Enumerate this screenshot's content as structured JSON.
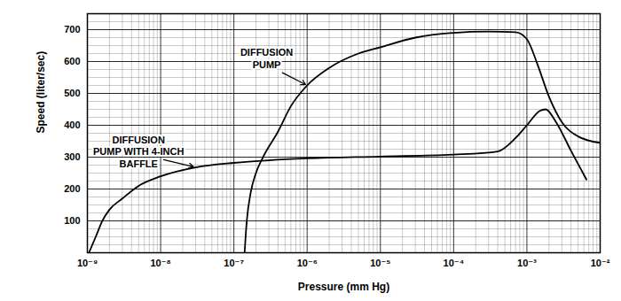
{
  "chart_data": {
    "type": "line",
    "xlabel": "Pressure (mm Hg)",
    "ylabel": "Speed (liter/sec)",
    "log": "x",
    "grid": true,
    "xlim": [
      1e-09,
      0.01
    ],
    "ylim": [
      0,
      750
    ],
    "xticks": [
      {
        "value": 1e-09,
        "label": "10⁻⁹"
      },
      {
        "value": 1e-08,
        "label": "10⁻⁸"
      },
      {
        "value": 1e-07,
        "label": "10⁻⁷"
      },
      {
        "value": 1e-06,
        "label": "10⁻⁶"
      },
      {
        "value": 1e-05,
        "label": "10⁻⁵"
      },
      {
        "value": 0.0001,
        "label": "10⁻⁴"
      },
      {
        "value": 0.001,
        "label": "10⁻³"
      },
      {
        "value": 0.01,
        "label": "10⁻²"
      }
    ],
    "yticks": [
      100,
      200,
      300,
      400,
      500,
      600,
      700
    ],
    "series": [
      {
        "name": "DIFFUSION\nPUMP",
        "color": "#000000",
        "line_style": "solid",
        "x": [
          1.4e-07,
          1.5e-07,
          1.7e-07,
          2e-07,
          2.5e-07,
          4e-07,
          6e-07,
          1e-06,
          2e-06,
          5e-06,
          1e-05,
          3e-05,
          0.0001,
          0.0003,
          0.0007,
          0.001,
          0.0014,
          0.002,
          0.003,
          0.005,
          0.01
        ],
        "values": [
          0,
          100,
          190,
          250,
          300,
          380,
          460,
          525,
          580,
          625,
          645,
          675,
          690,
          694,
          692,
          670,
          590,
          490,
          410,
          365,
          345
        ]
      },
      {
        "name": "DIFFUSION\nPUMP WITH 4-INCH\nBAFFLE",
        "color": "#000000",
        "line_style": "solid",
        "x": [
          1.05e-09,
          1.3e-09,
          1.6e-09,
          2e-09,
          3e-09,
          5e-09,
          1e-08,
          3e-08,
          1e-07,
          3e-07,
          1e-06,
          1e-05,
          0.0001,
          0.0004,
          0.0007,
          0.001,
          0.0015,
          0.0018,
          0.0025,
          0.004,
          0.0065
        ],
        "values": [
          0,
          50,
          100,
          135,
          170,
          210,
          240,
          268,
          282,
          290,
          296,
          302,
          308,
          318,
          360,
          400,
          445,
          450,
          410,
          320,
          230
        ]
      }
    ]
  }
}
